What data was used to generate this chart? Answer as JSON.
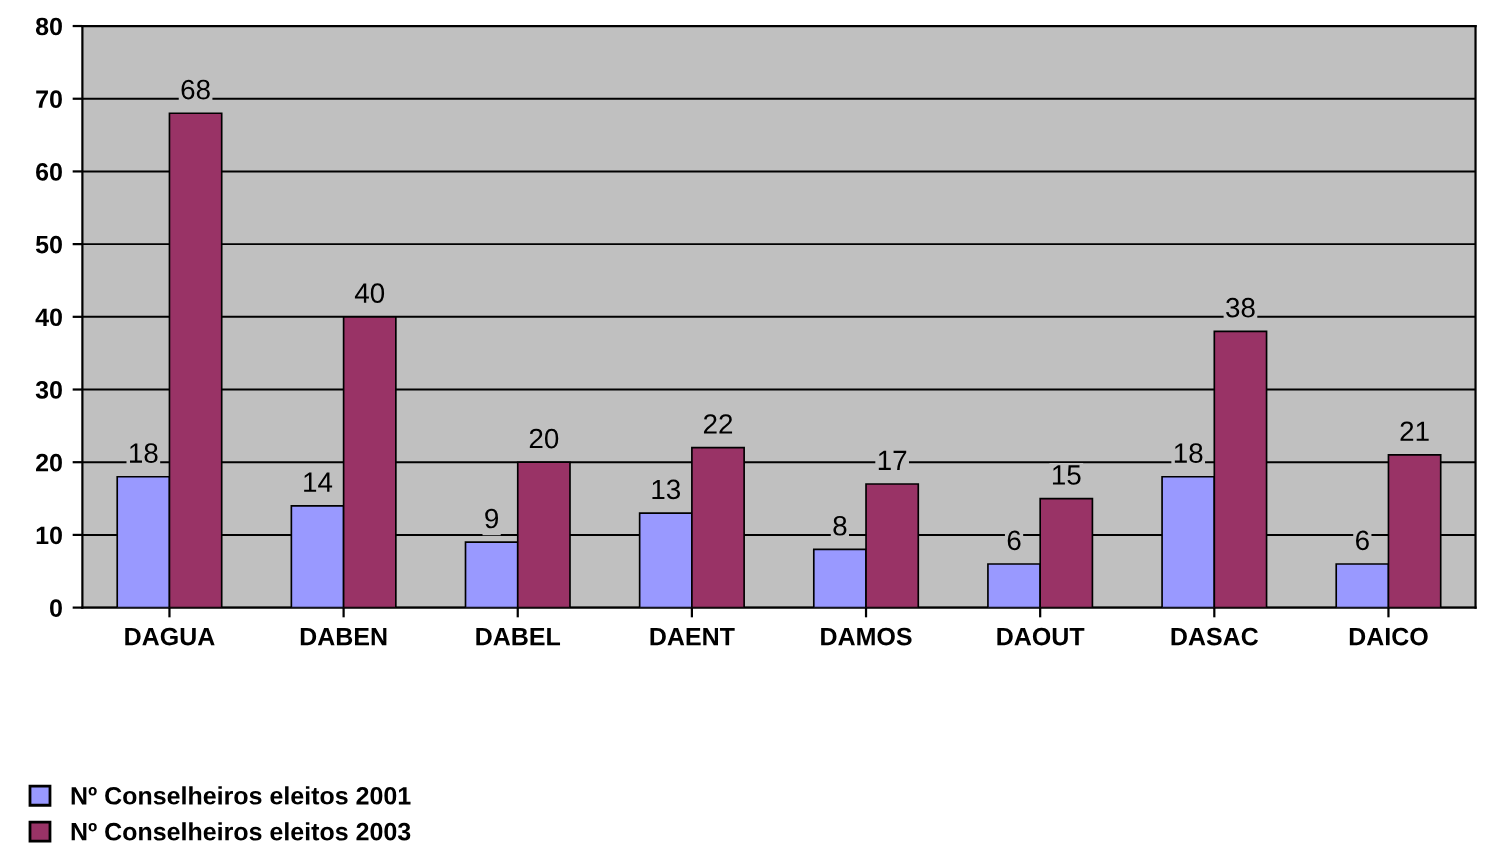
{
  "chart_data": {
    "type": "bar",
    "categories": [
      "DAGUA",
      "DABEN",
      "DABEL",
      "DAENT",
      "DAMOS",
      "DAOUT",
      "DASAC",
      "DAICO"
    ],
    "series": [
      {
        "name": "Nº Conselheiros eleitos 2001",
        "color": "#9999ff",
        "values": [
          18,
          14,
          9,
          13,
          8,
          6,
          18,
          6
        ]
      },
      {
        "name": "Nº Conselheiros eleitos 2003",
        "color": "#993366",
        "values": [
          68,
          40,
          20,
          22,
          17,
          15,
          38,
          21
        ]
      }
    ],
    "ylim": [
      0,
      80
    ],
    "yticks": [
      0,
      10,
      20,
      30,
      40,
      50,
      60,
      70,
      80
    ],
    "grid": "y",
    "legend": "bottom left",
    "data_labels": true
  }
}
